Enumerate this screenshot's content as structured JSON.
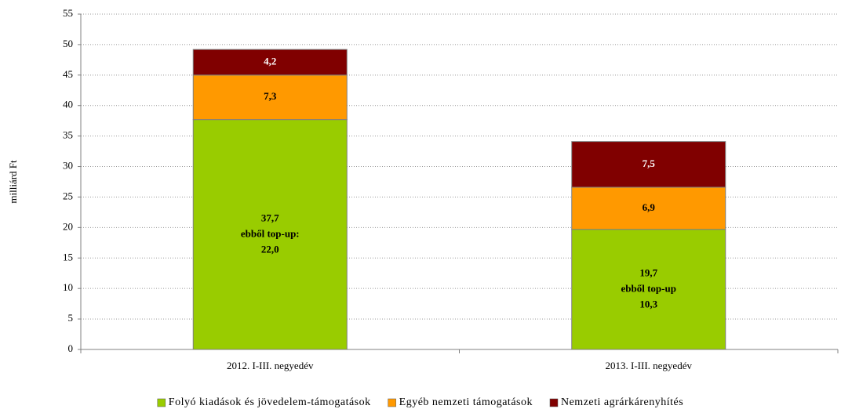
{
  "chart_data": {
    "type": "stacked_bar",
    "categories": [
      "2012. I-III. negyedév",
      "2013. I-III. negyedév"
    ],
    "ylabel": "milliárd Ft",
    "ylim": [
      0,
      55
    ],
    "yticks": [
      0,
      5,
      10,
      15,
      20,
      25,
      30,
      35,
      40,
      45,
      50,
      55
    ],
    "grid": true,
    "series": [
      {
        "name": "Folyó kiadások és jövedelem-támogatások",
        "color": "#99cc00",
        "values": [
          37.7,
          19.7
        ],
        "value_labels": [
          "37,7",
          "19,7"
        ]
      },
      {
        "name": "Egyéb nemzeti támogatások",
        "color": "#ff9900",
        "values": [
          7.3,
          6.9
        ],
        "value_labels": [
          "7,3",
          "6,9"
        ]
      },
      {
        "name": "Nemzeti agrárkárenyhítés",
        "color": "#800000",
        "values": [
          4.2,
          7.5
        ],
        "value_labels": [
          "4,2",
          "7,5"
        ]
      }
    ],
    "annotations": [
      [
        "ebből top-up:",
        "22,0"
      ],
      [
        "ebből top-up",
        "10,3"
      ]
    ],
    "legend": "bottom"
  }
}
